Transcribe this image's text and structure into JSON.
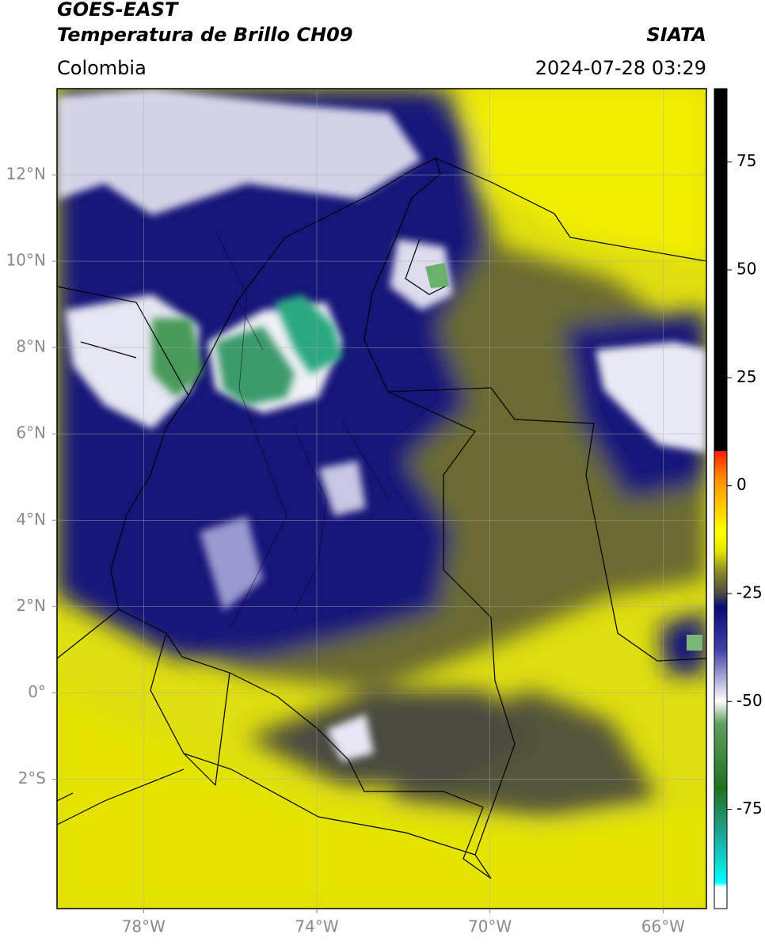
{
  "header": {
    "title": "GOES-EAST",
    "subtitle": "Temperatura de Brillo CH09",
    "region": "Colombia",
    "source": "SIATA",
    "timestamp": "2024-07-28 03:29"
  },
  "map": {
    "xlim": [
      -80,
      -65
    ],
    "ylim": [
      -5,
      14
    ],
    "xticks": [
      {
        "value": -78,
        "label": "78°W"
      },
      {
        "value": -74,
        "label": "74°W"
      },
      {
        "value": -70,
        "label": "70°W"
      },
      {
        "value": -66,
        "label": "66°W"
      }
    ],
    "yticks": [
      {
        "value": 12,
        "label": "12°N"
      },
      {
        "value": 10,
        "label": "10°N"
      },
      {
        "value": 8,
        "label": "8°N"
      },
      {
        "value": 6,
        "label": "6°N"
      },
      {
        "value": 4,
        "label": "4°N"
      },
      {
        "value": 2,
        "label": "2°N"
      },
      {
        "value": 0,
        "label": "0°"
      },
      {
        "value": -2,
        "label": "2°S"
      }
    ],
    "grid": true
  },
  "colorbar": {
    "lim": [
      -98,
      92
    ],
    "ticks": [
      75,
      50,
      25,
      0,
      -25,
      -50,
      -75
    ]
  }
}
